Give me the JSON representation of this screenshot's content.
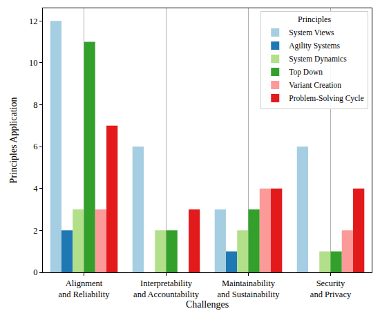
{
  "chart_data": {
    "type": "bar",
    "x_label": "Challenges",
    "y_label": "Principles Application",
    "legend_title": "Principles",
    "categories": [
      "Alignment\nand Reliability",
      "Interpretability\nand Accountability",
      "Maintainability\nand Sustainability",
      "Security\nand Privacy"
    ],
    "series": [
      {
        "name": "System Views",
        "color": "#a6cee3",
        "values": [
          12,
          6,
          3,
          6
        ]
      },
      {
        "name": "Agility Systems",
        "color": "#1f78b4",
        "values": [
          2,
          0,
          1,
          0
        ]
      },
      {
        "name": "System Dynamics",
        "color": "#b2df8a",
        "values": [
          3,
          2,
          2,
          1
        ]
      },
      {
        "name": "Top Down",
        "color": "#33a02c",
        "values": [
          11,
          2,
          3,
          1
        ]
      },
      {
        "name": "Variant Creation",
        "color": "#fb9a99",
        "values": [
          3,
          0,
          4,
          2
        ]
      },
      {
        "name": "Problem-Solving Cycle",
        "color": "#e31a1c",
        "values": [
          7,
          3,
          4,
          4
        ]
      }
    ],
    "ylim": [
      0,
      12.6
    ],
    "yticks": [
      0,
      2,
      4,
      6,
      8,
      10,
      12
    ],
    "grid": true,
    "legend": "top right"
  }
}
